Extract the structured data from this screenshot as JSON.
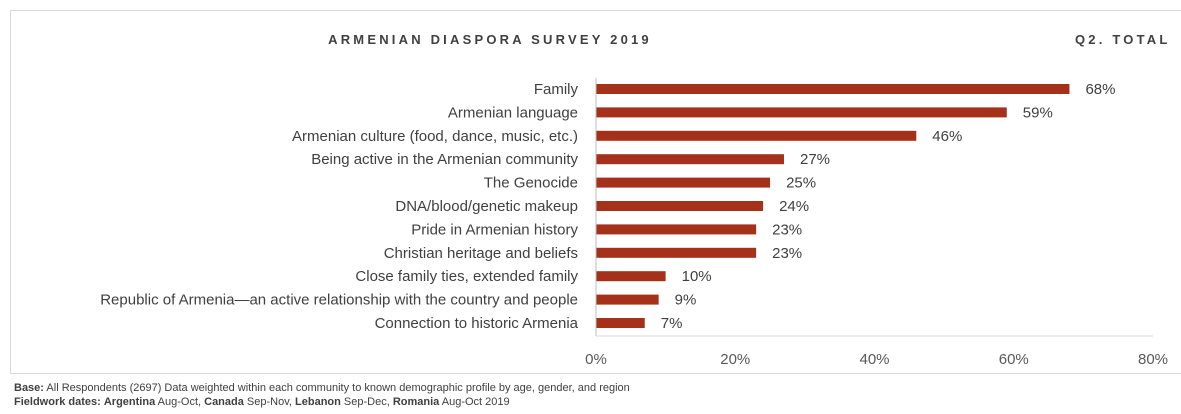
{
  "chart_data": {
    "type": "bar",
    "orientation": "horizontal",
    "title": "ARMENIAN DIASPORA SURVEY 2019",
    "subtitle": "Q2. TOTAL",
    "categories": [
      "Family",
      "Armenian language",
      "Armenian culture (food, dance, music, etc.)",
      "Being active in the Armenian community",
      "The Genocide ",
      "DNA/blood/genetic makeup",
      "Pride in Armenian history",
      "Christian heritage and beliefs",
      "Close family ties, extended family",
      "Republic of Armenia—an active relationship with the country and people",
      "Connection to historic Armenia"
    ],
    "values": [
      68,
      59,
      46,
      27,
      25,
      24,
      23,
      23,
      10,
      9,
      7
    ],
    "value_labels": [
      "68%",
      "59%",
      "46%",
      "27%",
      "25%",
      "24%",
      "23%",
      "23%",
      "10%",
      "9%",
      "7%"
    ],
    "xlim": [
      0,
      80
    ],
    "x_ticks": [
      "0%",
      "20%",
      "40%",
      "60%",
      "80%"
    ],
    "bar_color": "#a5311b",
    "grid": false,
    "legend": "none"
  },
  "footer": {
    "base_label": "Base:",
    "base_text": " All Respondents (2697) Data weighted within each community to known demographic profile by age, gender, and region",
    "fieldwork_label": "Fieldwork dates:",
    "fieldwork": [
      {
        "place": "Argentina",
        "dates": " Aug-Oct, "
      },
      {
        "place": "Canada",
        "dates": " Sep-Nov,  "
      },
      {
        "place": "Lebanon",
        "dates": " Sep-Dec, "
      },
      {
        "place": "Romania",
        "dates": " Aug-Oct 2019"
      }
    ]
  }
}
